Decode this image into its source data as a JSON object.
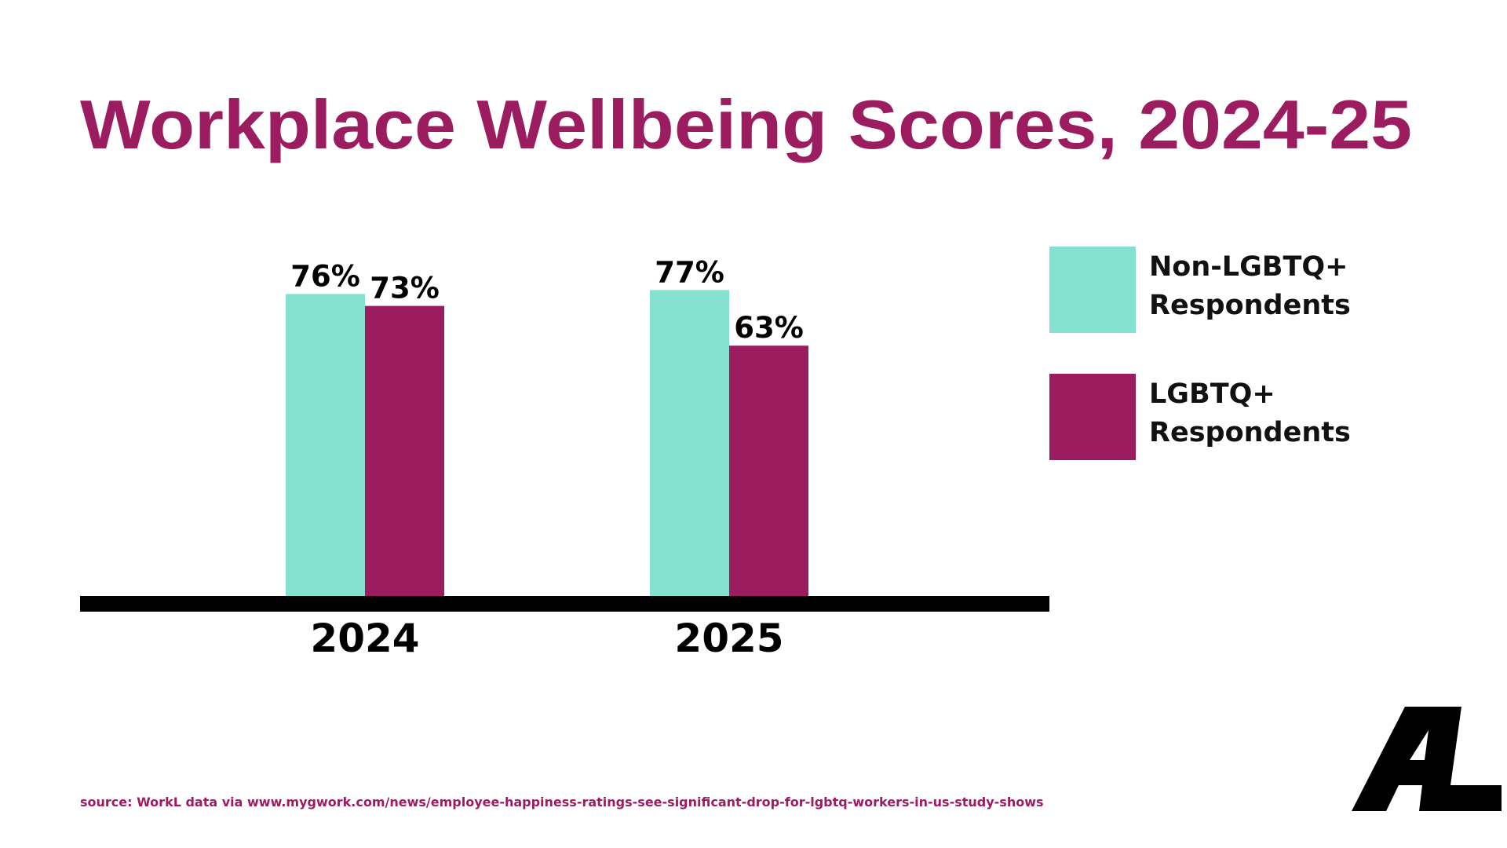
{
  "chart_data": {
    "type": "bar",
    "title": "Workplace Wellbeing Scores, 2024-25",
    "categories": [
      "2024",
      "2025"
    ],
    "series": [
      {
        "name": "Non-LGBTQ+ Respondents",
        "color": "#84e1d0",
        "values": [
          76,
          77
        ],
        "value_labels": [
          "76%",
          "77%"
        ]
      },
      {
        "name": "LGBTQ+ Respondents",
        "color": "#9c1c60",
        "values": [
          73,
          63
        ],
        "value_labels": [
          "73%",
          "63%"
        ]
      }
    ],
    "ylim": [
      0,
      100
    ],
    "legend": "right",
    "source": "source: WorkL data via www.mygwork.com/news/employee-happiness-ratings-see-significant-drop-for-lgbtq-workers-in-us-study-shows"
  }
}
